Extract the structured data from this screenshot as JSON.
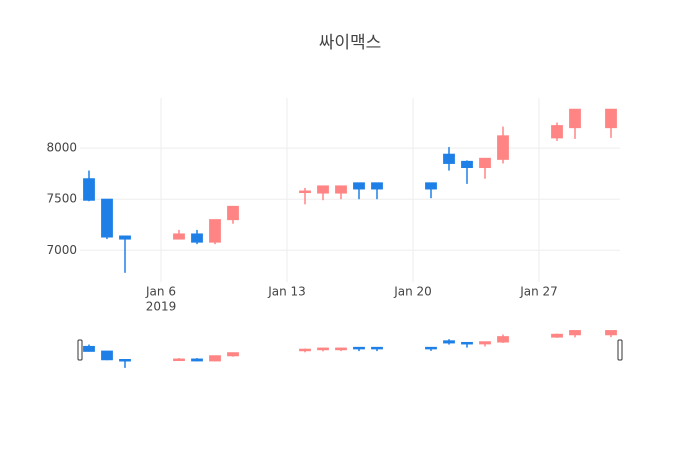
{
  "chart_data": {
    "type": "candlestick",
    "title": "싸이맥스",
    "x": [
      "2019-01-02",
      "2019-01-03",
      "2019-01-04",
      "2019-01-07",
      "2019-01-08",
      "2019-01-09",
      "2019-01-10",
      "2019-01-14",
      "2019-01-15",
      "2019-01-16",
      "2019-01-17",
      "2019-01-18",
      "2019-01-21",
      "2019-01-22",
      "2019-01-23",
      "2019-01-24",
      "2019-01-25",
      "2019-01-28",
      "2019-01-29",
      "2019-01-31"
    ],
    "open": [
      7700,
      7500,
      7140,
      7110,
      7160,
      7080,
      7300,
      7570,
      7560,
      7560,
      7660,
      7660,
      7660,
      7940,
      7870,
      7810,
      7890,
      8100,
      8200,
      8200
    ],
    "high": [
      7780,
      7500,
      7140,
      7200,
      7200,
      7300,
      7430,
      7610,
      7630,
      7630,
      7660,
      7660,
      7660,
      8010,
      7880,
      7900,
      8210,
      8250,
      8380,
      8380
    ],
    "low": [
      7480,
      7110,
      6780,
      7110,
      7060,
      7060,
      7260,
      7450,
      7490,
      7500,
      7500,
      7500,
      7510,
      7780,
      7650,
      7700,
      7850,
      8070,
      8090,
      8100
    ],
    "close": [
      7490,
      7130,
      7110,
      7160,
      7080,
      7300,
      7430,
      7580,
      7630,
      7630,
      7600,
      7600,
      7600,
      7850,
      7810,
      7900,
      8120,
      8220,
      8380,
      8380
    ],
    "increasing_color": "#ff8585",
    "decreasing_color": "#1e80e6",
    "xlim": [
      "2019-01-01T12:00",
      "2019-01-31T12:00"
    ],
    "xticks": [
      {
        "value": "2019-01-06",
        "label": "Jan 6"
      },
      {
        "value": "2019-01-13",
        "label": "Jan 13"
      },
      {
        "value": "2019-01-20",
        "label": "Jan 20"
      },
      {
        "value": "2019-01-27",
        "label": "Jan 27"
      }
    ],
    "x_year_label": "2019",
    "ylim": [
      6690,
      8490
    ],
    "yticks": [
      7000,
      7500,
      8000
    ],
    "grid": true,
    "rangeslider": true
  }
}
